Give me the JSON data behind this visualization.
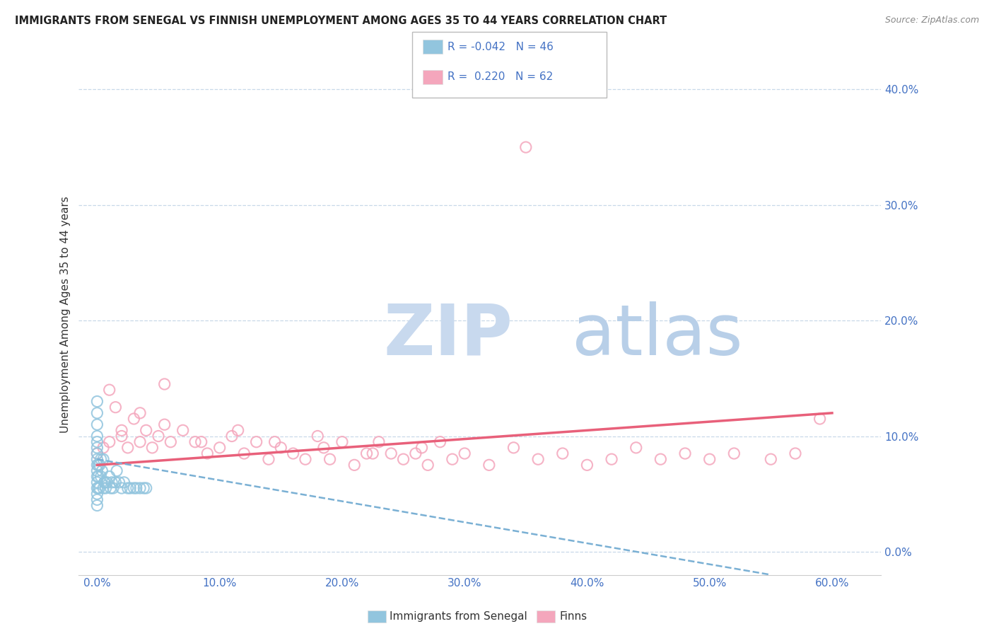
{
  "title": "IMMIGRANTS FROM SENEGAL VS FINNISH UNEMPLOYMENT AMONG AGES 35 TO 44 YEARS CORRELATION CHART",
  "source": "Source: ZipAtlas.com",
  "xlabel_vals": [
    0,
    10,
    20,
    30,
    40,
    50,
    60
  ],
  "ylabel_vals": [
    0,
    10,
    20,
    30,
    40
  ],
  "ylabel_label": "Unemployment Among Ages 35 to 44 years",
  "xlim": [
    -1.5,
    64
  ],
  "ylim": [
    -2,
    43
  ],
  "legend_blue_r": "-0.042",
  "legend_blue_n": "46",
  "legend_pink_r": "0.220",
  "legend_pink_n": "62",
  "blue_color": "#92c5de",
  "pink_color": "#f4a6bc",
  "blue_line_color": "#7ab0d4",
  "pink_line_color": "#e8607a",
  "watermark_zip_color": "#c8d9ee",
  "watermark_atlas_color": "#b8cfe8",
  "blue_scatter_x": [
    0.0,
    0.0,
    0.0,
    0.0,
    0.0,
    0.0,
    0.0,
    0.0,
    0.0,
    0.0,
    0.0,
    0.0,
    0.0,
    0.0,
    0.0,
    0.0,
    0.2,
    0.2,
    0.3,
    0.4,
    0.5,
    0.5,
    0.6,
    0.7,
    0.8,
    1.0,
    1.2,
    1.3,
    1.5,
    1.6,
    1.8,
    2.0,
    2.2,
    2.5,
    2.7,
    3.0,
    3.2,
    3.5,
    3.8,
    4.0,
    0.1,
    0.1,
    0.1,
    0.3,
    0.6,
    1.1
  ],
  "blue_scatter_y": [
    4.5,
    5.0,
    5.5,
    6.0,
    6.5,
    7.0,
    7.5,
    8.0,
    8.5,
    9.0,
    9.5,
    10.0,
    11.0,
    12.0,
    13.0,
    4.0,
    5.5,
    7.5,
    6.5,
    7.0,
    5.5,
    8.0,
    6.0,
    5.5,
    6.0,
    6.5,
    6.0,
    5.5,
    6.0,
    7.0,
    6.0,
    5.5,
    6.0,
    5.5,
    5.5,
    5.5,
    5.5,
    5.5,
    5.5,
    5.5,
    5.5,
    6.5,
    7.5,
    8.0,
    6.0,
    5.5
  ],
  "pink_scatter_x": [
    0.0,
    0.5,
    1.0,
    1.5,
    2.0,
    2.5,
    3.0,
    3.5,
    4.0,
    4.5,
    5.0,
    5.5,
    6.0,
    7.0,
    8.0,
    9.0,
    10.0,
    11.0,
    12.0,
    13.0,
    14.0,
    15.0,
    16.0,
    17.0,
    18.0,
    19.0,
    20.0,
    21.0,
    22.0,
    23.0,
    24.0,
    25.0,
    26.0,
    27.0,
    28.0,
    29.0,
    30.0,
    32.0,
    34.0,
    36.0,
    38.0,
    40.0,
    42.0,
    44.0,
    46.0,
    48.0,
    50.0,
    52.0,
    55.0,
    57.0,
    59.0,
    1.0,
    2.0,
    3.5,
    5.5,
    8.5,
    11.5,
    14.5,
    18.5,
    22.5,
    26.5,
    35.0
  ],
  "pink_scatter_y": [
    8.5,
    9.0,
    9.5,
    12.5,
    10.5,
    9.0,
    11.5,
    9.5,
    10.5,
    9.0,
    10.0,
    14.5,
    9.5,
    10.5,
    9.5,
    8.5,
    9.0,
    10.0,
    8.5,
    9.5,
    8.0,
    9.0,
    8.5,
    8.0,
    10.0,
    8.0,
    9.5,
    7.5,
    8.5,
    9.5,
    8.5,
    8.0,
    8.5,
    7.5,
    9.5,
    8.0,
    8.5,
    7.5,
    9.0,
    8.0,
    8.5,
    7.5,
    8.0,
    9.0,
    8.0,
    8.5,
    8.0,
    8.5,
    8.0,
    8.5,
    11.5,
    14.0,
    10.0,
    12.0,
    11.0,
    9.5,
    10.5,
    9.5,
    9.0,
    8.5,
    9.0,
    35.0
  ],
  "pink_trend_x0": 0,
  "pink_trend_x1": 60,
  "pink_trend_y0": 7.5,
  "pink_trend_y1": 12.0,
  "blue_trend_x0": 0,
  "blue_trend_x1": 55,
  "blue_trend_y0": 8.0,
  "blue_trend_y1": -2.0
}
